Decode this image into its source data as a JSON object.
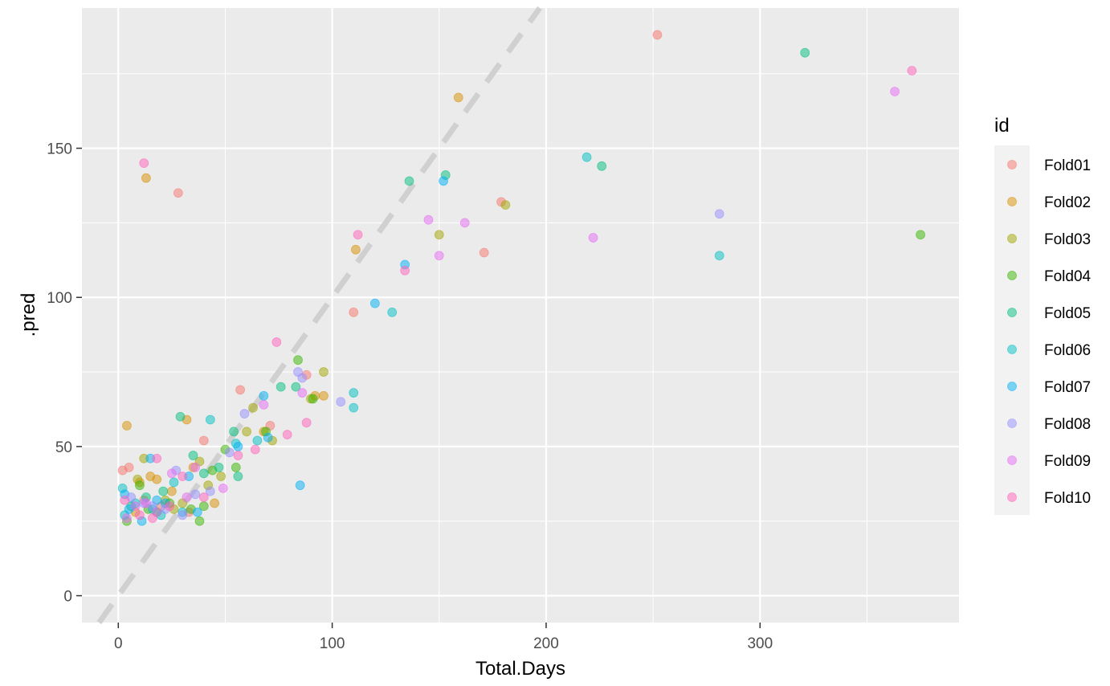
{
  "chart_data": {
    "type": "scatter",
    "xlabel": "Total.Days",
    "ylabel": ".pred",
    "xlim": [
      -17,
      393
    ],
    "ylim": [
      -9,
      197
    ],
    "x_ticks": [
      0,
      100,
      200,
      300
    ],
    "x_minor": [
      50,
      150,
      250,
      350
    ],
    "y_ticks": [
      0,
      50,
      100,
      150
    ],
    "y_minor": [
      25,
      75,
      125,
      175
    ],
    "x_tick_labels": [
      "0",
      "100",
      "200",
      "300"
    ],
    "y_tick_labels": [
      "0",
      "50",
      "100",
      "150"
    ],
    "grid": true,
    "reference_line": {
      "slope": 1,
      "intercept": 0,
      "style": "dashed",
      "color": "#d0d0d0"
    },
    "legend": {
      "title": "id",
      "position": "right"
    },
    "series": [
      {
        "name": "Fold01",
        "color": "#F8766D",
        "points": [
          [
            252,
            188
          ],
          [
            2,
            42
          ],
          [
            28,
            135
          ],
          [
            57,
            69
          ],
          [
            40,
            52
          ],
          [
            110,
            95
          ],
          [
            88,
            74
          ],
          [
            171,
            115
          ],
          [
            179,
            132
          ],
          [
            71,
            57
          ],
          [
            12,
            32
          ],
          [
            20,
            30
          ],
          [
            33,
            28
          ],
          [
            5,
            43
          ]
        ]
      },
      {
        "name": "Fold02",
        "color": "#D89000",
        "points": [
          [
            159,
            167
          ],
          [
            13,
            140
          ],
          [
            4,
            57
          ],
          [
            32,
            59
          ],
          [
            111,
            116
          ],
          [
            96,
            67
          ],
          [
            92,
            67
          ],
          [
            68,
            55
          ],
          [
            10,
            38
          ],
          [
            18,
            39
          ],
          [
            25,
            35
          ],
          [
            35,
            43
          ],
          [
            45,
            31
          ],
          [
            15,
            40
          ],
          [
            8,
            28
          ]
        ]
      },
      {
        "name": "Fold03",
        "color": "#A3A500",
        "points": [
          [
            181,
            131
          ],
          [
            150,
            121
          ],
          [
            96,
            75
          ],
          [
            63,
            63
          ],
          [
            90,
            66
          ],
          [
            48,
            40
          ],
          [
            60,
            55
          ],
          [
            72,
            52
          ],
          [
            22,
            32
          ],
          [
            12,
            46
          ],
          [
            30,
            31
          ],
          [
            38,
            45
          ],
          [
            42,
            37
          ],
          [
            9,
            39
          ],
          [
            26,
            29
          ]
        ]
      },
      {
        "name": "Fold04",
        "color": "#39B600",
        "points": [
          [
            375,
            121
          ],
          [
            84,
            79
          ],
          [
            91,
            66
          ],
          [
            69,
            55
          ],
          [
            55,
            43
          ],
          [
            50,
            49
          ],
          [
            38,
            25
          ],
          [
            24,
            31
          ],
          [
            14,
            29
          ],
          [
            4,
            25
          ],
          [
            40,
            30
          ],
          [
            44,
            42
          ],
          [
            18,
            28
          ],
          [
            10,
            37
          ],
          [
            34,
            29
          ]
        ]
      },
      {
        "name": "Fold05",
        "color": "#00BF7D",
        "points": [
          [
            321,
            182
          ],
          [
            226,
            144
          ],
          [
            153,
            141
          ],
          [
            136,
            139
          ],
          [
            76,
            70
          ],
          [
            83,
            70
          ],
          [
            54,
            55
          ],
          [
            29,
            60
          ],
          [
            35,
            47
          ],
          [
            56,
            40
          ],
          [
            40,
            41
          ],
          [
            13,
            33
          ],
          [
            21,
            35
          ],
          [
            47,
            43
          ],
          [
            6,
            30
          ]
        ]
      },
      {
        "name": "Fold06",
        "color": "#00BFC4",
        "points": [
          [
            219,
            147
          ],
          [
            281,
            114
          ],
          [
            128,
            95
          ],
          [
            110,
            68
          ],
          [
            110,
            63
          ],
          [
            43,
            59
          ],
          [
            65,
            52
          ],
          [
            55,
            51
          ],
          [
            26,
            38
          ],
          [
            2,
            36
          ],
          [
            16,
            29
          ],
          [
            8,
            31
          ],
          [
            30,
            28
          ],
          [
            20,
            27
          ],
          [
            3,
            27
          ]
        ]
      },
      {
        "name": "Fold07",
        "color": "#00B0F6",
        "points": [
          [
            152,
            139
          ],
          [
            134,
            111
          ],
          [
            120,
            98
          ],
          [
            68,
            67
          ],
          [
            85,
            37
          ],
          [
            70,
            53
          ],
          [
            56,
            50
          ],
          [
            15,
            46
          ],
          [
            33,
            40
          ],
          [
            3,
            34
          ],
          [
            11,
            25
          ],
          [
            22,
            31
          ],
          [
            37,
            28
          ],
          [
            18,
            32
          ],
          [
            5,
            29
          ]
        ]
      },
      {
        "name": "Fold08",
        "color": "#9590FF",
        "points": [
          [
            281,
            128
          ],
          [
            104,
            65
          ],
          [
            59,
            61
          ],
          [
            84,
            75
          ],
          [
            86,
            73
          ],
          [
            43,
            35
          ],
          [
            27,
            42
          ],
          [
            36,
            34
          ],
          [
            52,
            48
          ],
          [
            12,
            31
          ],
          [
            22,
            29
          ],
          [
            6,
            33
          ],
          [
            30,
            27
          ],
          [
            16,
            30
          ]
        ]
      },
      {
        "name": "Fold09",
        "color": "#E76BF3",
        "points": [
          [
            363,
            169
          ],
          [
            222,
            120
          ],
          [
            162,
            125
          ],
          [
            145,
            126
          ],
          [
            150,
            114
          ],
          [
            68,
            64
          ],
          [
            86,
            68
          ],
          [
            49,
            36
          ],
          [
            25,
            41
          ],
          [
            36,
            43
          ],
          [
            13,
            31
          ],
          [
            8,
            30
          ],
          [
            32,
            33
          ],
          [
            18,
            28
          ],
          [
            4,
            26
          ]
        ]
      },
      {
        "name": "Fold10",
        "color": "#FF62BC",
        "points": [
          [
            371,
            176
          ],
          [
            12,
            145
          ],
          [
            112,
            121
          ],
          [
            134,
            109
          ],
          [
            74,
            85
          ],
          [
            88,
            58
          ],
          [
            79,
            54
          ],
          [
            64,
            49
          ],
          [
            18,
            46
          ],
          [
            56,
            47
          ],
          [
            30,
            40
          ],
          [
            10,
            27
          ],
          [
            24,
            30
          ],
          [
            3,
            32
          ],
          [
            40,
            33
          ],
          [
            16,
            26
          ]
        ]
      }
    ]
  }
}
